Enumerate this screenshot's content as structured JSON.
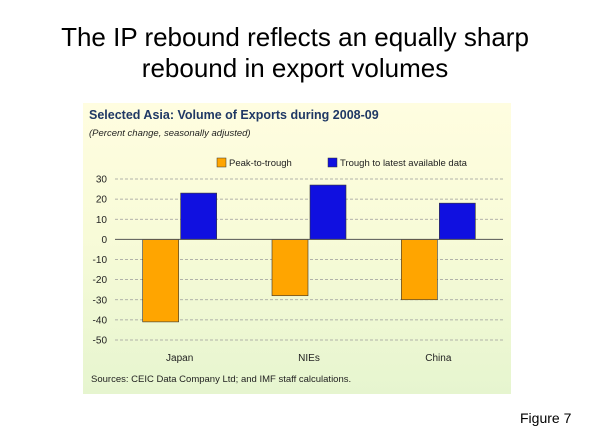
{
  "slide": {
    "title_line1": "The IP rebound reflects an equally sharp",
    "title_line2": "rebound in export volumes",
    "figure_label": "Figure 7"
  },
  "chart_data": {
    "type": "bar",
    "title": "Selected Asia: Volume of Exports during 2008-09",
    "subtitle": "(Percent change, seasonally adjusted)",
    "categories": [
      "Japan",
      "NIEs",
      "China"
    ],
    "series": [
      {
        "name": "Peak-to-trough",
        "values": [
          -41,
          -28,
          -30
        ],
        "color": "#ffa500"
      },
      {
        "name": "Trough to latest available data",
        "values": [
          23,
          27,
          18
        ],
        "color": "#1010e0"
      }
    ],
    "ylim": [
      -50,
      30
    ],
    "yticks": [
      30,
      20,
      10,
      0,
      -10,
      -20,
      -30,
      -40,
      -50
    ],
    "grid": true,
    "legend_position": "top",
    "xlabel": "",
    "ylabel": "",
    "source": "Sources: CEIC Data Company Ltd; and IMF staff calculations."
  }
}
